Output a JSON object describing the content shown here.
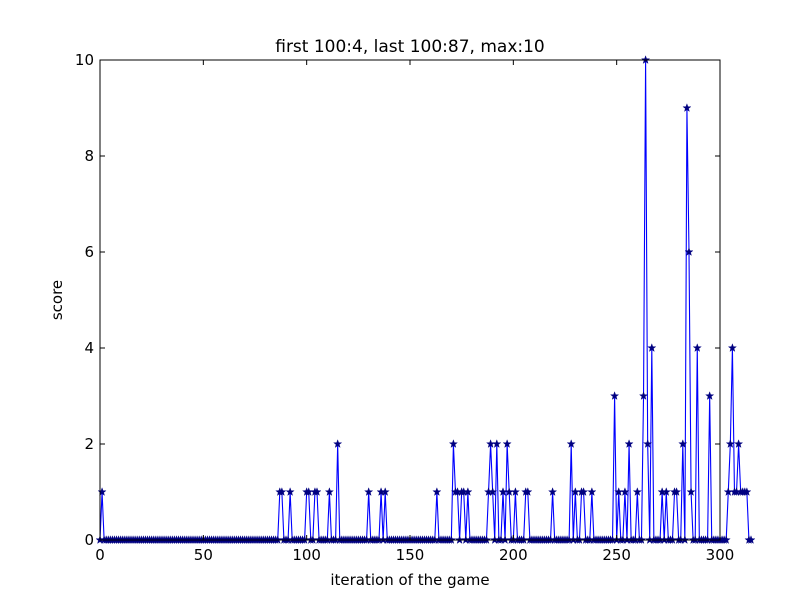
{
  "chart_data": {
    "type": "line",
    "title": "first 100:4, last 100:87, max:10",
    "xlabel": "iteration of the game",
    "ylabel": "score",
    "xlim": [
      0,
      300
    ],
    "ylim": [
      0,
      10
    ],
    "x_ticks": [
      0,
      50,
      100,
      150,
      200,
      250,
      300
    ],
    "y_ticks": [
      0,
      2,
      4,
      6,
      8,
      10
    ],
    "grid": false,
    "series": [
      {
        "color": "#0000ff",
        "marker": "star",
        "values": [
          0,
          1,
          0,
          0,
          0,
          0,
          0,
          0,
          0,
          0,
          0,
          0,
          0,
          0,
          0,
          0,
          0,
          0,
          0,
          0,
          0,
          0,
          0,
          0,
          0,
          0,
          0,
          0,
          0,
          0,
          0,
          0,
          0,
          0,
          0,
          0,
          0,
          0,
          0,
          0,
          0,
          0,
          0,
          0,
          0,
          0,
          0,
          0,
          0,
          0,
          0,
          0,
          0,
          0,
          0,
          0,
          0,
          0,
          0,
          0,
          0,
          0,
          0,
          0,
          0,
          0,
          0,
          0,
          0,
          0,
          0,
          0,
          0,
          0,
          0,
          0,
          0,
          0,
          0,
          0,
          0,
          0,
          0,
          0,
          0,
          0,
          0,
          1,
          1,
          0,
          0,
          0,
          1,
          0,
          0,
          0,
          0,
          0,
          0,
          0,
          1,
          1,
          0,
          0,
          1,
          1,
          0,
          0,
          0,
          0,
          0,
          1,
          0,
          0,
          0,
          2,
          0,
          0,
          0,
          0,
          0,
          0,
          0,
          0,
          0,
          0,
          0,
          0,
          0,
          0,
          1,
          0,
          0,
          0,
          0,
          0,
          1,
          0,
          1,
          0,
          0,
          0,
          0,
          0,
          0,
          0,
          0,
          0,
          0,
          0,
          0,
          0,
          0,
          0,
          0,
          0,
          0,
          0,
          0,
          0,
          0,
          0,
          0,
          1,
          0,
          0,
          0,
          0,
          0,
          0,
          0,
          2,
          1,
          1,
          0,
          1,
          1,
          0,
          1,
          0,
          0,
          0,
          0,
          0,
          0,
          0,
          0,
          0,
          1,
          2,
          1,
          0,
          2,
          0,
          0,
          1,
          0,
          2,
          1,
          0,
          0,
          1,
          0,
          0,
          0,
          0,
          1,
          1,
          0,
          0,
          0,
          0,
          0,
          0,
          0,
          0,
          0,
          0,
          0,
          1,
          0,
          0,
          0,
          0,
          0,
          0,
          0,
          0,
          2,
          0,
          1,
          0,
          0,
          1,
          1,
          0,
          0,
          0,
          1,
          0,
          0,
          0,
          0,
          0,
          0,
          0,
          0,
          0,
          0,
          3,
          0,
          1,
          0,
          0,
          1,
          0,
          2,
          0,
          0,
          0,
          1,
          0,
          0,
          3,
          10,
          2,
          0,
          4,
          0,
          0,
          0,
          0,
          1,
          0,
          1,
          0,
          0,
          0,
          1,
          1,
          0,
          0,
          2,
          0,
          9,
          6,
          1,
          0,
          0,
          4,
          0,
          0,
          0,
          0,
          0,
          3,
          0,
          0,
          0,
          0,
          0,
          0,
          0,
          0,
          1,
          2,
          4,
          1,
          1,
          2,
          1,
          1,
          1,
          1,
          0,
          0
        ]
      }
    ]
  }
}
